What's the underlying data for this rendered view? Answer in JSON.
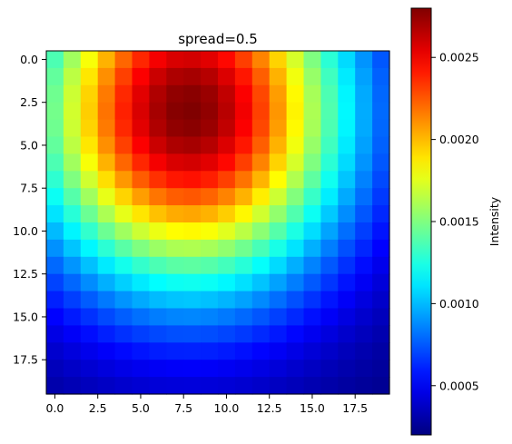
{
  "chart_data": [
    {
      "type": "heatmap",
      "title": "spread=0.5",
      "xlabel": "",
      "ylabel": "",
      "grid": false,
      "colormap": "jet",
      "origin": "upper",
      "rows": 20,
      "cols": 20,
      "xlim": [
        -0.5,
        19.5
      ],
      "ylim": [
        19.5,
        -0.5
      ],
      "x_ticks": [
        0.0,
        2.5,
        5.0,
        7.5,
        10.0,
        12.5,
        15.0,
        17.5
      ],
      "x_tick_labels": [
        "0.0",
        "2.5",
        "5.0",
        "7.5",
        "10.0",
        "12.5",
        "15.0",
        "17.5"
      ],
      "y_ticks": [
        0.0,
        2.5,
        5.0,
        7.5,
        10.0,
        12.5,
        15.0,
        17.5
      ],
      "y_tick_labels": [
        "0.0",
        "2.5",
        "5.0",
        "7.5",
        "10.0",
        "12.5",
        "15.0",
        "17.5"
      ],
      "peak": {
        "row": 3,
        "col": 7.8,
        "value": 0.0028
      },
      "min_corner_value": 0.0002,
      "values": "20x20 grid, generated in the drawing script from the peak location and radial falloff"
    },
    {
      "type": "colorbar",
      "label": "Intensity",
      "range": [
        0.0002,
        0.0028
      ],
      "ticks": [
        0.0005,
        0.001,
        0.0015,
        0.002,
        0.0025
      ],
      "tick_labels": [
        "0.0005",
        "0.0010",
        "0.0015",
        "0.0020",
        "0.0025"
      ],
      "colormap": "jet"
    }
  ]
}
